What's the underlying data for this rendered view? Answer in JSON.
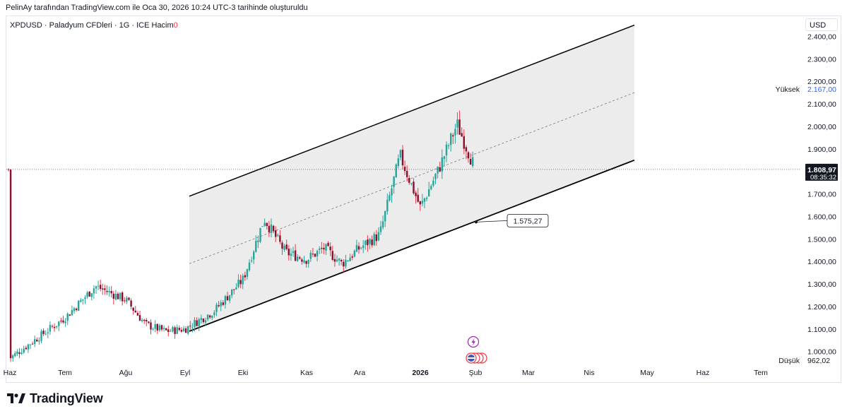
{
  "attribution": "PelinAy tarafından TradingView.com ile Oca 30, 2026 10:24 UTC-3 tarihinde oluşturuldu",
  "legend": {
    "title": "XPDUSD · Paladyum CFDleri · 1G · ICE",
    "volume_label": "Hacim",
    "volume_value": "0"
  },
  "currency": "USD",
  "price_labels": {
    "high_label": "Yüksek",
    "high_value": "2.167,00",
    "low_label": "Düşük",
    "low_value": "962,02",
    "current_price": "1.808,97",
    "countdown": "08:35:32",
    "channel_callout": "1.575,27"
  },
  "brand": "TradingView",
  "colors": {
    "up": "#26a69a",
    "down": "#880e2b",
    "wick_up": "#26a69a",
    "wick_down": "#f23645",
    "channel_fill": "#e6e6e6",
    "text": "#131722",
    "grid_border": "#e0e3eb"
  },
  "chart_data": {
    "type": "candlestick",
    "symbol": "XPDUSD",
    "ylim": [
      930,
      2480
    ],
    "y_ticks": [
      {
        "value": 1000,
        "label": "1.000,00"
      },
      {
        "value": 1100,
        "label": "1.100,00"
      },
      {
        "value": 1200,
        "label": "1.200,00"
      },
      {
        "value": 1300,
        "label": "1.300,00"
      },
      {
        "value": 1400,
        "label": "1.400,00"
      },
      {
        "value": 1500,
        "label": "1.500,00"
      },
      {
        "value": 1600,
        "label": "1.600,00"
      },
      {
        "value": 1700,
        "label": "1.700,00"
      },
      {
        "value": 1900,
        "label": "1.900,00"
      },
      {
        "value": 2000,
        "label": "2.000,00"
      },
      {
        "value": 2100,
        "label": "2.100,00"
      },
      {
        "value": 2200,
        "label": "2.200,00"
      },
      {
        "value": 2300,
        "label": "2.300,00"
      },
      {
        "value": 2400,
        "label": "2.400,00"
      }
    ],
    "x_labels": [
      {
        "label": "Haz",
        "bold": false
      },
      {
        "label": "Tem",
        "bold": false
      },
      {
        "label": "Ağu",
        "bold": false
      },
      {
        "label": "Eyl",
        "bold": false
      },
      {
        "label": "Eki",
        "bold": false
      },
      {
        "label": "Kas",
        "bold": false
      },
      {
        "label": "Ara",
        "bold": false
      },
      {
        "label": "2026",
        "bold": true
      },
      {
        "label": "Şub",
        "bold": false
      },
      {
        "label": "Mar",
        "bold": false
      },
      {
        "label": "Nis",
        "bold": false
      },
      {
        "label": "May",
        "bold": false
      },
      {
        "label": "Haz",
        "bold": false
      },
      {
        "label": "Tem",
        "bold": false
      }
    ],
    "current_price": 1808.97,
    "high": 2167.0,
    "low": 962.02,
    "channel": {
      "start_label": "Eyl",
      "end_label": "May",
      "lower_start": 1090,
      "lower_end": 1850,
      "upper_start": 1690,
      "upper_end": 2450,
      "callout_value": 1575.27
    },
    "close_path": [
      {
        "label": "Haz",
        "close": 970
      },
      {
        "label": "",
        "close": 1060
      },
      {
        "label": "Tem",
        "close": 1150
      },
      {
        "label": "",
        "close": 1290
      },
      {
        "label": "Ağu",
        "close": 1230
      },
      {
        "label": "",
        "close": 1120
      },
      {
        "label": "",
        "close": 1090
      },
      {
        "label": "Eyl",
        "close": 1100
      },
      {
        "label": "",
        "close": 1180
      },
      {
        "label": "Eki",
        "close": 1320
      },
      {
        "label": "",
        "close": 1590
      },
      {
        "label": "",
        "close": 1440
      },
      {
        "label": "Kas",
        "close": 1410
      },
      {
        "label": "",
        "close": 1460
      },
      {
        "label": "",
        "close": 1390
      },
      {
        "label": "Ara",
        "close": 1460
      },
      {
        "label": "",
        "close": 1520
      },
      {
        "label": "",
        "close": 1870
      },
      {
        "label": "2026",
        "close": 1640
      },
      {
        "label": "",
        "close": 1810
      },
      {
        "label": "",
        "close": 2010
      },
      {
        "label": "Şub",
        "close": 1809
      }
    ]
  }
}
